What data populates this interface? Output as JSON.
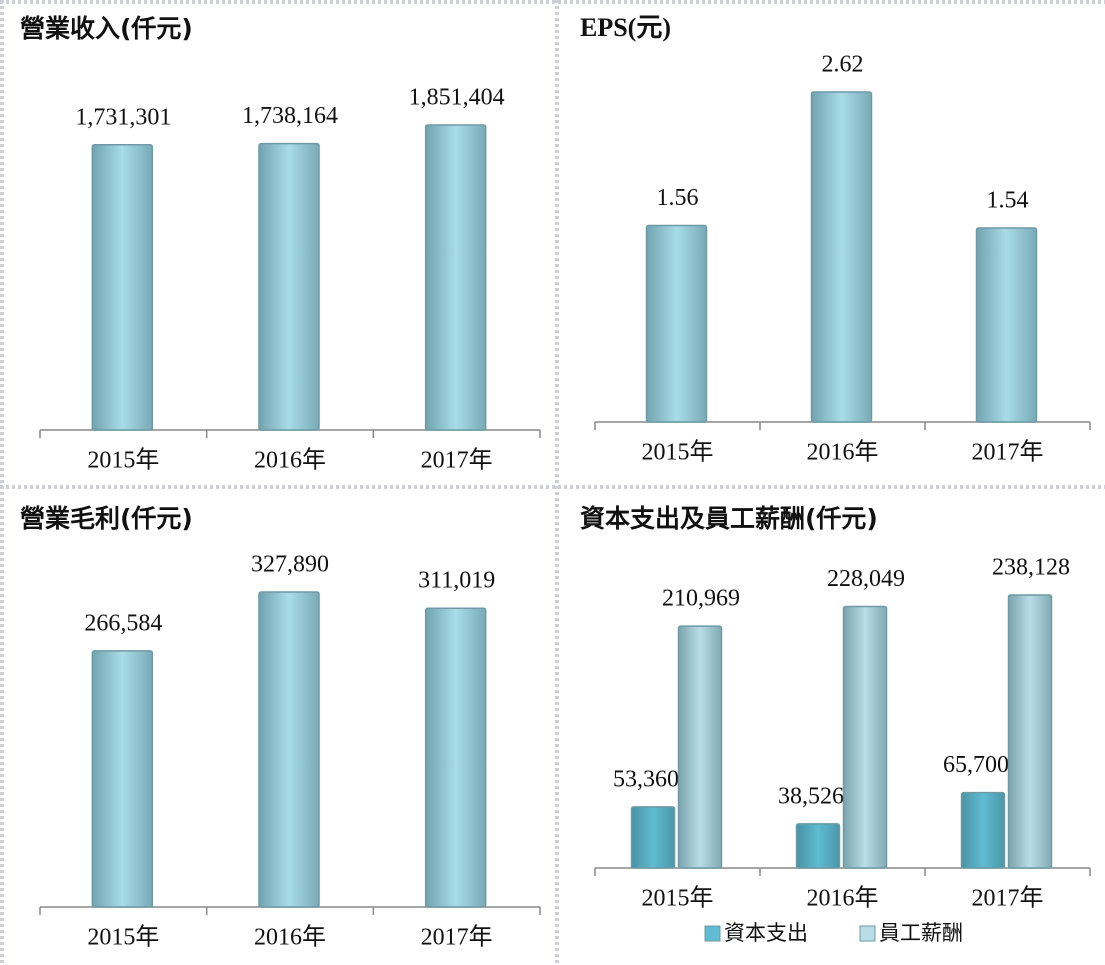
{
  "chart_data": [
    {
      "type": "bar",
      "title": "營業收入(仟元)",
      "categories": [
        "2015年",
        "2016年",
        "2017年"
      ],
      "series": [
        {
          "name": null,
          "color": "#a9dce9",
          "values": [
            1731301,
            1738164,
            1851404
          ],
          "value_labels": [
            "1,731,301",
            "1,738,164",
            "1,851,404"
          ]
        }
      ]
    },
    {
      "type": "bar",
      "title": "EPS(元)",
      "categories": [
        "2015年",
        "2016年",
        "2017年"
      ],
      "series": [
        {
          "name": null,
          "color": "#a9dce9",
          "values": [
            1.56,
            2.62,
            1.54
          ]
        }
      ]
    },
    {
      "type": "bar",
      "title": "營業毛利(仟元)",
      "categories": [
        "2015年",
        "2016年",
        "2017年"
      ],
      "series": [
        {
          "name": null,
          "color": "#a9dce9",
          "values": [
            266584,
            327890,
            311019
          ],
          "value_labels": [
            "266,584",
            "327,890",
            "311,019"
          ]
        }
      ]
    },
    {
      "type": "bar",
      "title": "資本支出及員工薪酬(仟元)",
      "categories": [
        "2015年",
        "2016年",
        "2017年"
      ],
      "legend": "bottom",
      "series": [
        {
          "name": "資本支出",
          "color": "#5fbcd2",
          "values": [
            53360,
            38526,
            65700
          ],
          "value_labels": [
            "53,360",
            "38,526",
            "65,700"
          ]
        },
        {
          "name": "員工薪酬",
          "color": "#b9dde6",
          "values": [
            210969,
            228049,
            238128
          ],
          "value_labels": [
            "210,969",
            "228,049",
            "238,128"
          ]
        }
      ]
    }
  ]
}
